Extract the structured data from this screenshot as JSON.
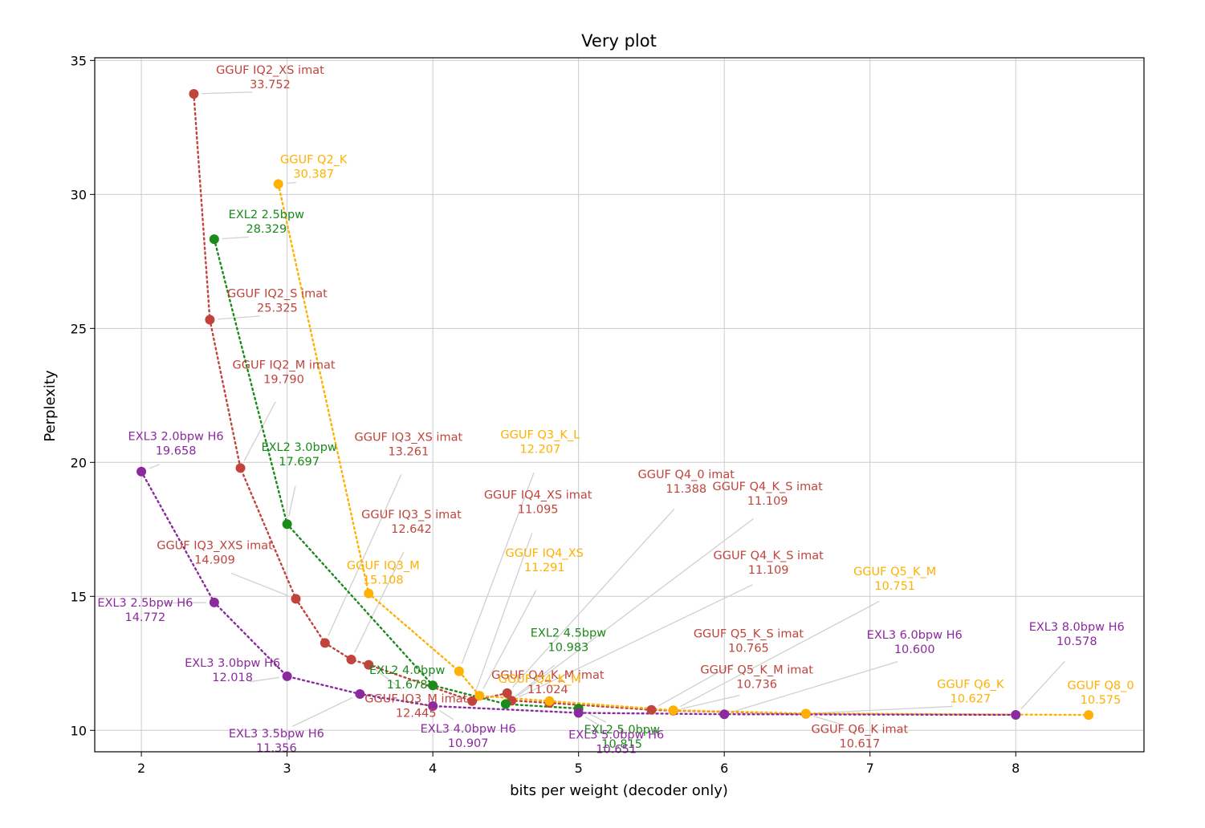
{
  "chart_data": {
    "type": "scatter",
    "title": "Very plot",
    "xlabel": "bits per weight (decoder only)",
    "ylabel": "Perplexity",
    "xlim": [
      1.68,
      8.88
    ],
    "ylim": [
      9.2,
      35.1
    ],
    "xticks": [
      2,
      3,
      4,
      5,
      6,
      7,
      8
    ],
    "yticks": [
      10,
      15,
      20,
      25,
      30,
      35
    ],
    "grid": true,
    "connect_style": "dotted",
    "series": [
      {
        "color": "#c0443c",
        "points": [
          {
            "x": 2.36,
            "y": 33.752,
            "label": "GGUF IQ2_XS imat",
            "value": "33.752"
          },
          {
            "x": 2.47,
            "y": 25.325,
            "label": "GGUF IQ2_S imat",
            "value": "25.325"
          },
          {
            "x": 2.68,
            "y": 19.79,
            "label": "GGUF IQ2_M imat",
            "value": "19.790"
          },
          {
            "x": 3.06,
            "y": 14.909,
            "label": "GGUF IQ3_XXS imat",
            "value": "14.909"
          },
          {
            "x": 3.26,
            "y": 13.261,
            "label": "GGUF IQ3_XS imat",
            "value": "13.261"
          },
          {
            "x": 3.44,
            "y": 12.642,
            "label": "GGUF IQ3_S imat",
            "value": "12.642"
          },
          {
            "x": 3.56,
            "y": 12.445,
            "label": "GGUF IQ3_M imat",
            "value": "12.445"
          },
          {
            "x": 4.27,
            "y": 11.095,
            "label": "GGUF IQ4_XS imat",
            "value": "11.095"
          },
          {
            "x": 4.51,
            "y": 11.388,
            "label": "GGUF Q4_0 imat",
            "value": "11.388"
          },
          {
            "x": 4.54,
            "y": 11.109,
            "label": "GGUF Q4_K_S imat",
            "value": "11.109"
          },
          {
            "x": 4.8,
            "y": 11.024,
            "label": "GGUF Q4_K_M imat",
            "value": "11.024"
          },
          {
            "x": 5.5,
            "y": 10.765,
            "label": "GGUF Q5_K_S imat",
            "value": "10.765"
          },
          {
            "x": 5.65,
            "y": 10.736,
            "label": "GGUF Q5_K_M imat",
            "value": "10.736"
          },
          {
            "x": 6.56,
            "y": 10.617,
            "label": "GGUF Q6_K imat",
            "value": "10.617"
          }
        ]
      },
      {
        "color": "#ffb000",
        "points": [
          {
            "x": 2.94,
            "y": 30.387,
            "label": "GGUF Q2_K",
            "value": "30.387"
          },
          {
            "x": 3.56,
            "y": 15.108,
            "label": "GGUF IQ3_M",
            "value": "15.108"
          },
          {
            "x": 4.18,
            "y": 12.207,
            "label": "GGUF Q3_K_L",
            "value": "12.207"
          },
          {
            "x": 4.32,
            "y": 11.291,
            "label": "GGUF IQ4_XS",
            "value": "11.291"
          },
          {
            "x": 4.8,
            "y": 11.092,
            "label": "GGUF Q4_K_M",
            "value": ""
          },
          {
            "x": 5.65,
            "y": 10.751,
            "label": "GGUF Q5_K_M",
            "value": "10.751"
          },
          {
            "x": 6.56,
            "y": 10.627,
            "label": "GGUF Q6_K",
            "value": "10.627"
          },
          {
            "x": 8.5,
            "y": 10.575,
            "label": "GGUF Q8_0",
            "value": "10.575"
          }
        ]
      },
      {
        "color": "#1a8a1a",
        "points": [
          {
            "x": 2.5,
            "y": 28.329,
            "label": "EXL2 2.5bpw",
            "value": "28.329"
          },
          {
            "x": 3.0,
            "y": 17.697,
            "label": "EXL2 3.0bpw",
            "value": "17.697"
          },
          {
            "x": 4.0,
            "y": 11.678,
            "label": "EXL2 4.0bpw",
            "value": "11.678"
          },
          {
            "x": 4.5,
            "y": 10.983,
            "label": "EXL2 4.5bpw",
            "value": "10.983"
          },
          {
            "x": 5.0,
            "y": 10.815,
            "label": "EXL2 5.0bpw",
            "value": "10.815"
          }
        ]
      },
      {
        "color": "#8b2a9e",
        "points": [
          {
            "x": 2.0,
            "y": 19.658,
            "label": "EXL3 2.0bpw H6",
            "value": "19.658"
          },
          {
            "x": 2.5,
            "y": 14.772,
            "label": "EXL3 2.5bpw H6",
            "value": "14.772"
          },
          {
            "x": 3.0,
            "y": 12.018,
            "label": "EXL3 3.0bpw H6",
            "value": "12.018"
          },
          {
            "x": 3.5,
            "y": 11.356,
            "label": "EXL3 3.5bpw H6",
            "value": "11.356"
          },
          {
            "x": 4.0,
            "y": 10.907,
            "label": "EXL3 4.0bpw H6",
            "value": "10.907"
          },
          {
            "x": 5.0,
            "y": 10.651,
            "label": "EXL3 5.0bpw H6",
            "value": "10.651"
          },
          {
            "x": 6.0,
            "y": 10.6,
            "label": "EXL3 6.0bpw H6",
            "value": "10.600"
          },
          {
            "x": 8.0,
            "y": 10.578,
            "label": "EXL3 8.0bpw H6",
            "value": "10.578"
          }
        ]
      }
    ],
    "extra_annotations": [
      {
        "x": 4.54,
        "y": 11.109,
        "label": "GGUF Q4_K_S imat",
        "value": "11.109",
        "color": "#c0443c"
      }
    ]
  }
}
